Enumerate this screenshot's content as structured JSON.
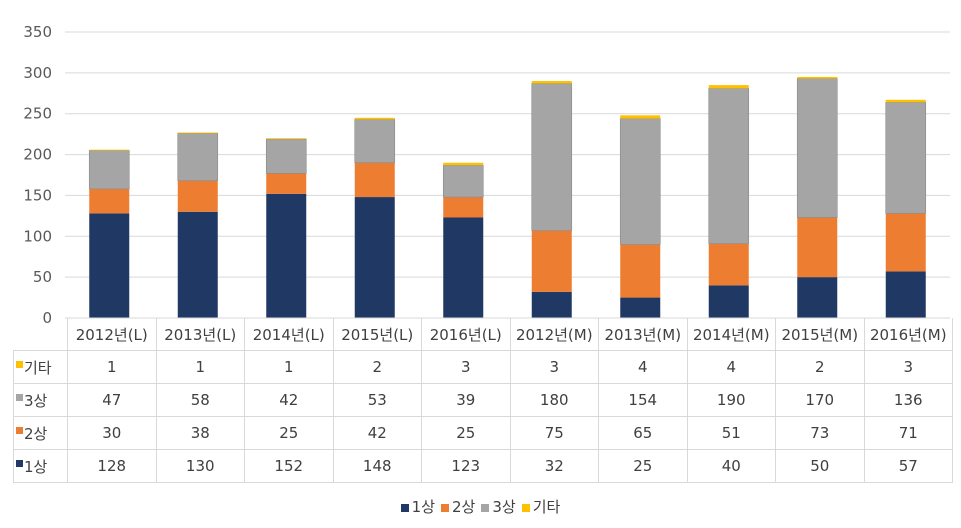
{
  "chart_data": {
    "type": "bar",
    "stacked": true,
    "categories": [
      "2012년(L)",
      "2013년(L)",
      "2014년(L)",
      "2015년(L)",
      "2016년(L)",
      "2012년(M)",
      "2013년(M)",
      "2014년(M)",
      "2015년(M)",
      "2016년(M)"
    ],
    "series": [
      {
        "name": "1상",
        "color": "#203864",
        "values": [
          128,
          130,
          152,
          148,
          123,
          32,
          25,
          40,
          50,
          57
        ]
      },
      {
        "name": "2상",
        "color": "#ed7d31",
        "values": [
          30,
          38,
          25,
          42,
          25,
          75,
          65,
          51,
          73,
          71
        ]
      },
      {
        "name": "3상",
        "color": "#a5a5a5",
        "values": [
          47,
          58,
          42,
          53,
          39,
          180,
          154,
          190,
          170,
          136
        ]
      },
      {
        "name": "기타",
        "color": "#ffc000",
        "values": [
          1,
          1,
          1,
          2,
          3,
          3,
          4,
          4,
          2,
          3
        ]
      }
    ],
    "table_row_order": [
      "기타",
      "3상",
      "2상",
      "1상"
    ],
    "ylim": [
      0,
      350
    ],
    "yticks": [
      0,
      50,
      100,
      150,
      200,
      250,
      300,
      350
    ],
    "grid": true,
    "legend": "bottom",
    "data_table": true
  }
}
